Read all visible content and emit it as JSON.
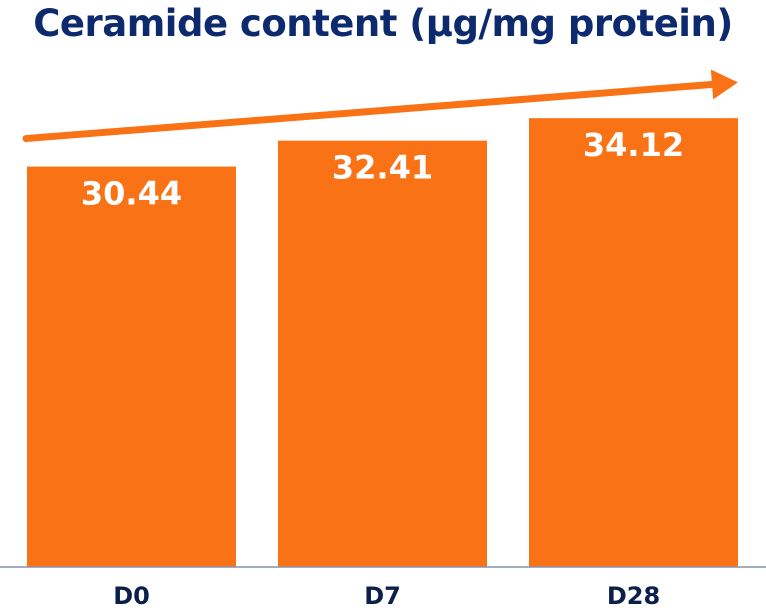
{
  "chart_data": {
    "type": "bar",
    "title": "Ceramide content (µg/mg protein)",
    "categories": [
      "D0",
      "D7",
      "D28"
    ],
    "values": [
      30.44,
      32.41,
      34.12
    ],
    "ylim": [
      0,
      35.5
    ],
    "grid": false,
    "legend": "none",
    "trend_arrow": true
  },
  "colors": {
    "bar": "#f97316",
    "title": "#0d2a6e",
    "axis": "#8a8fa8",
    "label": "#0b1f4d"
  }
}
